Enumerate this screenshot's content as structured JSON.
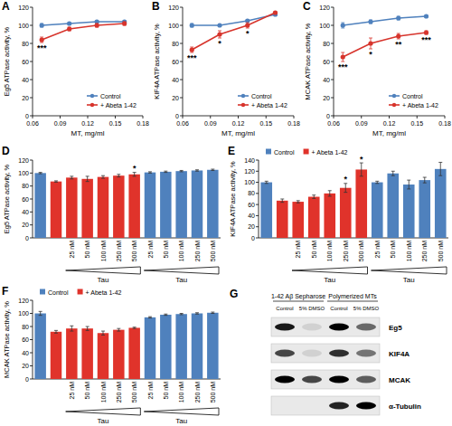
{
  "chart_data": [
    {
      "panel": "A",
      "type": "line",
      "x_label": "MT, mg/ml",
      "y_label": "Eg5 ATPase activity, %",
      "x": [
        0.07,
        0.1,
        0.13,
        0.16
      ],
      "xlim": [
        0.06,
        0.18
      ],
      "xticks": [
        0.06,
        0.09,
        0.12,
        0.15,
        0.18
      ],
      "ylim": [
        0,
        120
      ],
      "yticks": [
        0,
        20,
        40,
        60,
        80,
        100,
        120
      ],
      "legend": "lower right",
      "series": [
        {
          "name": "Control",
          "color": "#4f81bd",
          "marker": "circle",
          "values": [
            100,
            102,
            104,
            104
          ],
          "errors": [
            2,
            1,
            1,
            1
          ]
        },
        {
          "name": "+ Abeta 1-42",
          "color": "#d7342c",
          "marker": "circle",
          "values": [
            84,
            96,
            100,
            102
          ],
          "errors": [
            3,
            2,
            2,
            2
          ],
          "significance": [
            "***",
            null,
            null,
            null
          ]
        }
      ]
    },
    {
      "panel": "B",
      "type": "line",
      "x_label": "MT, mg/ml",
      "y_label": "KIF4A ATPase activity, %",
      "x": [
        0.07,
        0.1,
        0.13,
        0.16
      ],
      "xlim": [
        0.06,
        0.18
      ],
      "xticks": [
        0.06,
        0.09,
        0.12,
        0.15,
        0.18
      ],
      "ylim": [
        0,
        120
      ],
      "yticks": [
        0,
        20,
        40,
        60,
        80,
        100,
        120
      ],
      "legend": "lower right",
      "series": [
        {
          "name": "Control",
          "color": "#4f81bd",
          "marker": "circle",
          "values": [
            100,
            100,
            105,
            112
          ],
          "errors": [
            2,
            1,
            1,
            1
          ]
        },
        {
          "name": "+ Abeta 1-42",
          "color": "#d7342c",
          "marker": "circle",
          "values": [
            73,
            90,
            100,
            114
          ],
          "errors": [
            3,
            4,
            3,
            1
          ],
          "significance": [
            "***",
            "*",
            "*",
            null
          ]
        }
      ]
    },
    {
      "panel": "C",
      "type": "line",
      "x_label": "MT, mg/ml",
      "y_label": "MCAK ATPase activity, %",
      "x": [
        0.07,
        0.1,
        0.13,
        0.16
      ],
      "xlim": [
        0.06,
        0.18
      ],
      "xticks": [
        0.06,
        0.09,
        0.12,
        0.15,
        0.18
      ],
      "ylim": [
        0,
        120
      ],
      "yticks": [
        0,
        20,
        40,
        60,
        80,
        100,
        120
      ],
      "legend": "lower right",
      "series": [
        {
          "name": "Control",
          "color": "#4f81bd",
          "marker": "circle",
          "values": [
            100,
            104,
            108,
            110
          ],
          "errors": [
            3,
            2,
            2,
            1
          ]
        },
        {
          "name": "+ Abeta 1-42",
          "color": "#d7342c",
          "marker": "circle",
          "values": [
            65,
            80,
            88,
            92
          ],
          "errors": [
            5,
            6,
            3,
            2
          ],
          "significance": [
            "***",
            "*",
            "**",
            "***"
          ]
        }
      ]
    },
    {
      "panel": "D",
      "type": "bar",
      "y_label": "Eg5 ATPase activity, %",
      "categories": [
        null,
        null,
        "25 nM",
        "50 nM",
        "100 nM",
        "250 nM",
        "500 nM",
        "25 nM",
        "50 nM",
        "100 nM",
        "250 nM",
        "500 nM"
      ],
      "ylim": [
        0,
        120
      ],
      "yticks": [
        0,
        20,
        40,
        60,
        80,
        100,
        120
      ],
      "annotations": [
        {
          "text": "Tau",
          "from": 2,
          "to": 6
        },
        {
          "text": "Tau",
          "from": 7,
          "to": 11
        }
      ],
      "series": [
        {
          "name": "Control",
          "color": "#4f81bd",
          "values": [
            100,
            null,
            null,
            null,
            null,
            null,
            null,
            101,
            102,
            103,
            104,
            105
          ],
          "errors": [
            1,
            null,
            null,
            null,
            null,
            null,
            null,
            1,
            1,
            1,
            1,
            1
          ]
        },
        {
          "name": "+ Abeta 1-42",
          "color": "#e0332b",
          "values": [
            null,
            87,
            93,
            91,
            94,
            96,
            98,
            null,
            null,
            null,
            null,
            null
          ],
          "errors": [
            null,
            1,
            2,
            4,
            2,
            2,
            3,
            null,
            null,
            null,
            null,
            null
          ],
          "significance": [
            null,
            null,
            null,
            null,
            null,
            null,
            "*",
            null,
            null,
            null,
            null,
            null
          ]
        }
      ]
    },
    {
      "panel": "E",
      "type": "bar",
      "y_label": "KIF4A ATPase activity, %",
      "categories": [
        null,
        null,
        "25 nM",
        "50 nM",
        "100 nM",
        "250 nM",
        "500 nM",
        "25 nM",
        "50 nM",
        "100 nM",
        "250 nM",
        "500 nM"
      ],
      "ylim": [
        0,
        140
      ],
      "yticks": [
        0,
        20,
        40,
        60,
        80,
        100,
        120,
        140
      ],
      "legend": "upper left",
      "annotations": [
        {
          "text": "Tau",
          "from": 2,
          "to": 6
        },
        {
          "text": "Tau",
          "from": 7,
          "to": 11
        }
      ],
      "series": [
        {
          "name": "Control",
          "color": "#4f81bd",
          "values": [
            100,
            null,
            null,
            null,
            null,
            null,
            null,
            100,
            116,
            96,
            104,
            124
          ],
          "errors": [
            2,
            null,
            null,
            null,
            null,
            null,
            null,
            2,
            4,
            8,
            5,
            12
          ]
        },
        {
          "name": "+ Abeta 1-42",
          "color": "#e0332b",
          "values": [
            null,
            67,
            65,
            74,
            80,
            90,
            123,
            null,
            null,
            null,
            null,
            null
          ],
          "errors": [
            null,
            3,
            2,
            3,
            5,
            8,
            12,
            null,
            null,
            null,
            null,
            null
          ],
          "significance": [
            null,
            null,
            null,
            null,
            null,
            "*",
            "*",
            null,
            null,
            null,
            null,
            null
          ]
        }
      ]
    },
    {
      "panel": "F",
      "type": "bar",
      "y_label": "MCAK ATPase activity, %",
      "categories": [
        null,
        null,
        "25 nM",
        "50 nM",
        "100 nM",
        "250 nM",
        "500 nM",
        "25 nM",
        "50 nM",
        "100 nM",
        "250 nM",
        "500 nM"
      ],
      "ylim": [
        0,
        120
      ],
      "yticks": [
        0,
        20,
        40,
        60,
        80,
        100,
        120
      ],
      "legend": "upper left",
      "annotations": [
        {
          "text": "Tau",
          "from": 2,
          "to": 6
        },
        {
          "text": "Tau",
          "from": 7,
          "to": 11
        }
      ],
      "series": [
        {
          "name": "Control",
          "color": "#4f81bd",
          "values": [
            100,
            null,
            null,
            null,
            null,
            null,
            null,
            94,
            98,
            99,
            100,
            101
          ],
          "errors": [
            3,
            null,
            null,
            null,
            null,
            null,
            null,
            1,
            1,
            1,
            1,
            1
          ]
        },
        {
          "name": "+ Abeta 1-42",
          "color": "#e0332b",
          "values": [
            null,
            72,
            77,
            77,
            70,
            75,
            78,
            null,
            null,
            null,
            null,
            null
          ],
          "errors": [
            null,
            2,
            4,
            3,
            3,
            2,
            1,
            null,
            null,
            null,
            null,
            null
          ]
        }
      ]
    }
  ],
  "blot": {
    "panel": "G",
    "groups": [
      {
        "label": "1-42 Aβ Sepharose",
        "lanes": [
          0,
          1
        ]
      },
      {
        "label": "Polymerized MTs",
        "lanes": [
          2,
          3
        ]
      }
    ],
    "lanes": [
      "Control",
      "5% DMSO",
      "Control",
      "5% DMSO"
    ],
    "rows": [
      {
        "label": "Eg5",
        "intensities": [
          0.9,
          0.1,
          1,
          0.55
        ]
      },
      {
        "label": "KIF4A",
        "intensities": [
          0.7,
          0.1,
          0.8,
          0.5
        ]
      },
      {
        "label": "MCAK",
        "intensities": [
          1,
          0.7,
          1,
          0.6
        ]
      },
      {
        "label": "α-Tubulin",
        "intensities": [
          0,
          0,
          0.85,
          1
        ]
      }
    ]
  }
}
